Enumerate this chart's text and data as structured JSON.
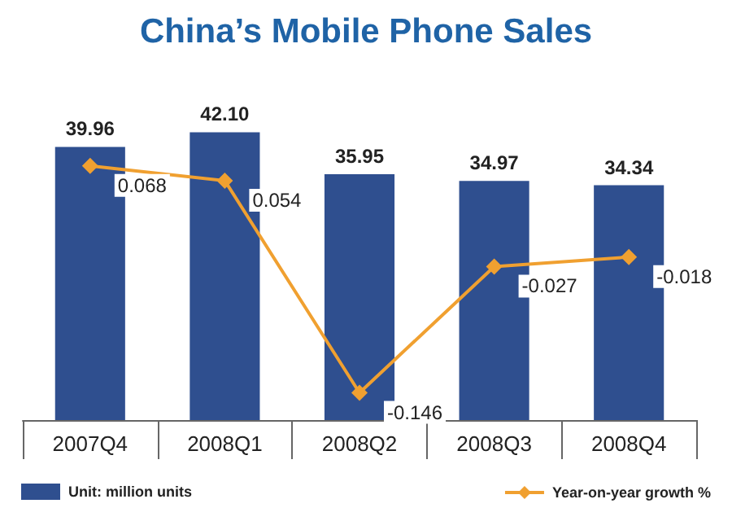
{
  "chart_data": {
    "type": "bar",
    "title": "China’s Mobile Phone Sales",
    "categories": [
      "2007Q4",
      "2008Q1",
      "2008Q2",
      "2008Q3",
      "2008Q4"
    ],
    "series": [
      {
        "name": "Unit: million units",
        "color": "#2f4f8f",
        "values": [
          39.96,
          42.1,
          35.95,
          34.97,
          34.34
        ],
        "value_labels": [
          "39.96",
          "42.10",
          "35.95",
          "34.97",
          "34.34"
        ]
      },
      {
        "name": "Year-on-year growth %",
        "type": "line",
        "axis": "y2",
        "color": "#f0a030",
        "marker": "diamond",
        "values": [
          0.068,
          0.054,
          -0.146,
          -0.027,
          -0.018
        ],
        "value_labels": [
          "0.068",
          "0.054",
          "-0.146",
          "-0.027",
          "-0.018"
        ]
      }
    ],
    "legend": "bottom",
    "grid": false,
    "tick_labels": "x"
  }
}
